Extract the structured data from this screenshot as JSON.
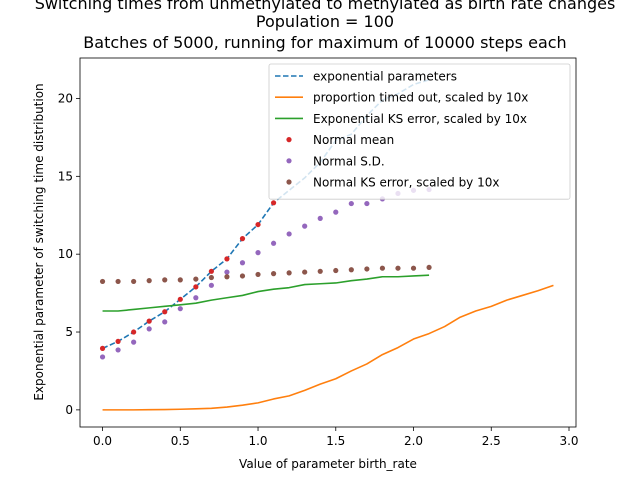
{
  "chart_data": {
    "type": "line",
    "title_lines": [
      "Switching times from unmethylated to methylated as birth rate changes",
      "Population = 100",
      "Batches of 5000, running for maximum of 10000 steps each"
    ],
    "xlabel": "Value of parameter birth_rate",
    "ylabel": "Exponential parameter of switching time distribution",
    "xlim": [
      -0.145,
      3.045
    ],
    "ylim": [
      -1.1,
      22.6
    ],
    "xticks": [
      {
        "value": 0.0,
        "label": "0.0"
      },
      {
        "value": 0.5,
        "label": "0.5"
      },
      {
        "value": 1.0,
        "label": "1.0"
      },
      {
        "value": 1.5,
        "label": "1.5"
      },
      {
        "value": 2.0,
        "label": "2.0"
      },
      {
        "value": 2.5,
        "label": "2.5"
      },
      {
        "value": 3.0,
        "label": "3.0"
      }
    ],
    "yticks": [
      {
        "value": 0,
        "label": "0"
      },
      {
        "value": 5,
        "label": "5"
      },
      {
        "value": 10,
        "label": "10"
      },
      {
        "value": 15,
        "label": "15"
      },
      {
        "value": 20,
        "label": "20"
      }
    ],
    "grid": false,
    "legend_position": "top-right",
    "series": [
      {
        "name": "exponential parameters",
        "style": "dashed-line",
        "color": "#1f77b4",
        "x": [
          0.0,
          0.1,
          0.2,
          0.3,
          0.4,
          0.5,
          0.6,
          0.7,
          0.8,
          0.9,
          1.0,
          1.1,
          1.2,
          1.3,
          1.4,
          1.5,
          1.6,
          1.7,
          1.8,
          1.9,
          2.0,
          2.1
        ],
        "y": [
          3.95,
          4.4,
          5.0,
          5.7,
          6.3,
          7.1,
          7.9,
          8.9,
          9.7,
          11.0,
          11.9,
          13.3,
          14.1,
          14.9,
          15.9,
          17.3,
          17.7,
          18.9,
          19.9,
          20.3,
          20.9,
          21.2
        ]
      },
      {
        "name": "proportion timed out, scaled by 10x",
        "style": "line",
        "color": "#ff7f0e",
        "x": [
          0.0,
          0.1,
          0.2,
          0.3,
          0.4,
          0.5,
          0.6,
          0.7,
          0.8,
          0.9,
          1.0,
          1.1,
          1.2,
          1.3,
          1.4,
          1.5,
          1.6,
          1.7,
          1.8,
          1.9,
          2.0,
          2.1,
          2.2,
          2.3,
          2.4,
          2.5,
          2.6,
          2.7,
          2.8,
          2.9
        ],
        "y": [
          0.0,
          0.0,
          0.0,
          0.01,
          0.02,
          0.04,
          0.07,
          0.1,
          0.18,
          0.3,
          0.45,
          0.7,
          0.9,
          1.25,
          1.65,
          2.0,
          2.5,
          2.95,
          3.55,
          4.0,
          4.55,
          4.9,
          5.35,
          5.95,
          6.35,
          6.65,
          7.05,
          7.35,
          7.65,
          8.0
        ]
      },
      {
        "name": "Exponential KS error, scaled by 10x",
        "style": "line",
        "color": "#2ca02c",
        "x": [
          0.0,
          0.1,
          0.2,
          0.3,
          0.4,
          0.5,
          0.6,
          0.7,
          0.8,
          0.9,
          1.0,
          1.1,
          1.2,
          1.3,
          1.4,
          1.5,
          1.6,
          1.7,
          1.8,
          1.9,
          2.0,
          2.1
        ],
        "y": [
          6.35,
          6.35,
          6.45,
          6.55,
          6.65,
          6.75,
          6.85,
          7.05,
          7.2,
          7.35,
          7.6,
          7.75,
          7.85,
          8.05,
          8.1,
          8.15,
          8.3,
          8.4,
          8.55,
          8.55,
          8.6,
          8.65
        ]
      },
      {
        "name": "Normal mean",
        "style": "dots",
        "color": "#d62728",
        "x": [
          0.0,
          0.1,
          0.2,
          0.3,
          0.4,
          0.5,
          0.6,
          0.7,
          0.8,
          0.9,
          1.0,
          1.1
        ],
        "y": [
          3.95,
          4.4,
          5.0,
          5.7,
          6.3,
          7.1,
          7.9,
          8.9,
          9.7,
          11.0,
          11.9,
          13.3
        ]
      },
      {
        "name": "Normal S.D.",
        "style": "dots",
        "color": "#9467bd",
        "x": [
          0.0,
          0.1,
          0.2,
          0.3,
          0.4,
          0.5,
          0.6,
          0.7,
          0.8,
          0.9,
          1.0,
          1.1,
          1.2,
          1.3,
          1.4,
          1.5,
          1.6,
          1.7,
          1.8,
          1.9,
          2.0,
          2.1
        ],
        "y": [
          3.4,
          3.85,
          4.35,
          5.2,
          5.65,
          6.5,
          7.2,
          8.0,
          8.85,
          9.45,
          10.1,
          10.7,
          11.3,
          11.8,
          12.3,
          12.7,
          13.25,
          13.25,
          13.55,
          13.9,
          14.1,
          14.15
        ]
      },
      {
        "name": "Normal KS error, scaled by 10x",
        "style": "dots",
        "color": "#8c564b",
        "x": [
          0.0,
          0.1,
          0.2,
          0.3,
          0.4,
          0.5,
          0.6,
          0.7,
          0.8,
          0.9,
          1.0,
          1.1,
          1.2,
          1.3,
          1.4,
          1.5,
          1.6,
          1.7,
          1.8,
          1.9,
          2.0,
          2.1
        ],
        "y": [
          8.25,
          8.25,
          8.25,
          8.3,
          8.35,
          8.35,
          8.4,
          8.5,
          8.55,
          8.6,
          8.7,
          8.75,
          8.8,
          8.85,
          8.9,
          8.95,
          9.0,
          9.05,
          9.1,
          9.1,
          9.1,
          9.15
        ]
      }
    ]
  }
}
